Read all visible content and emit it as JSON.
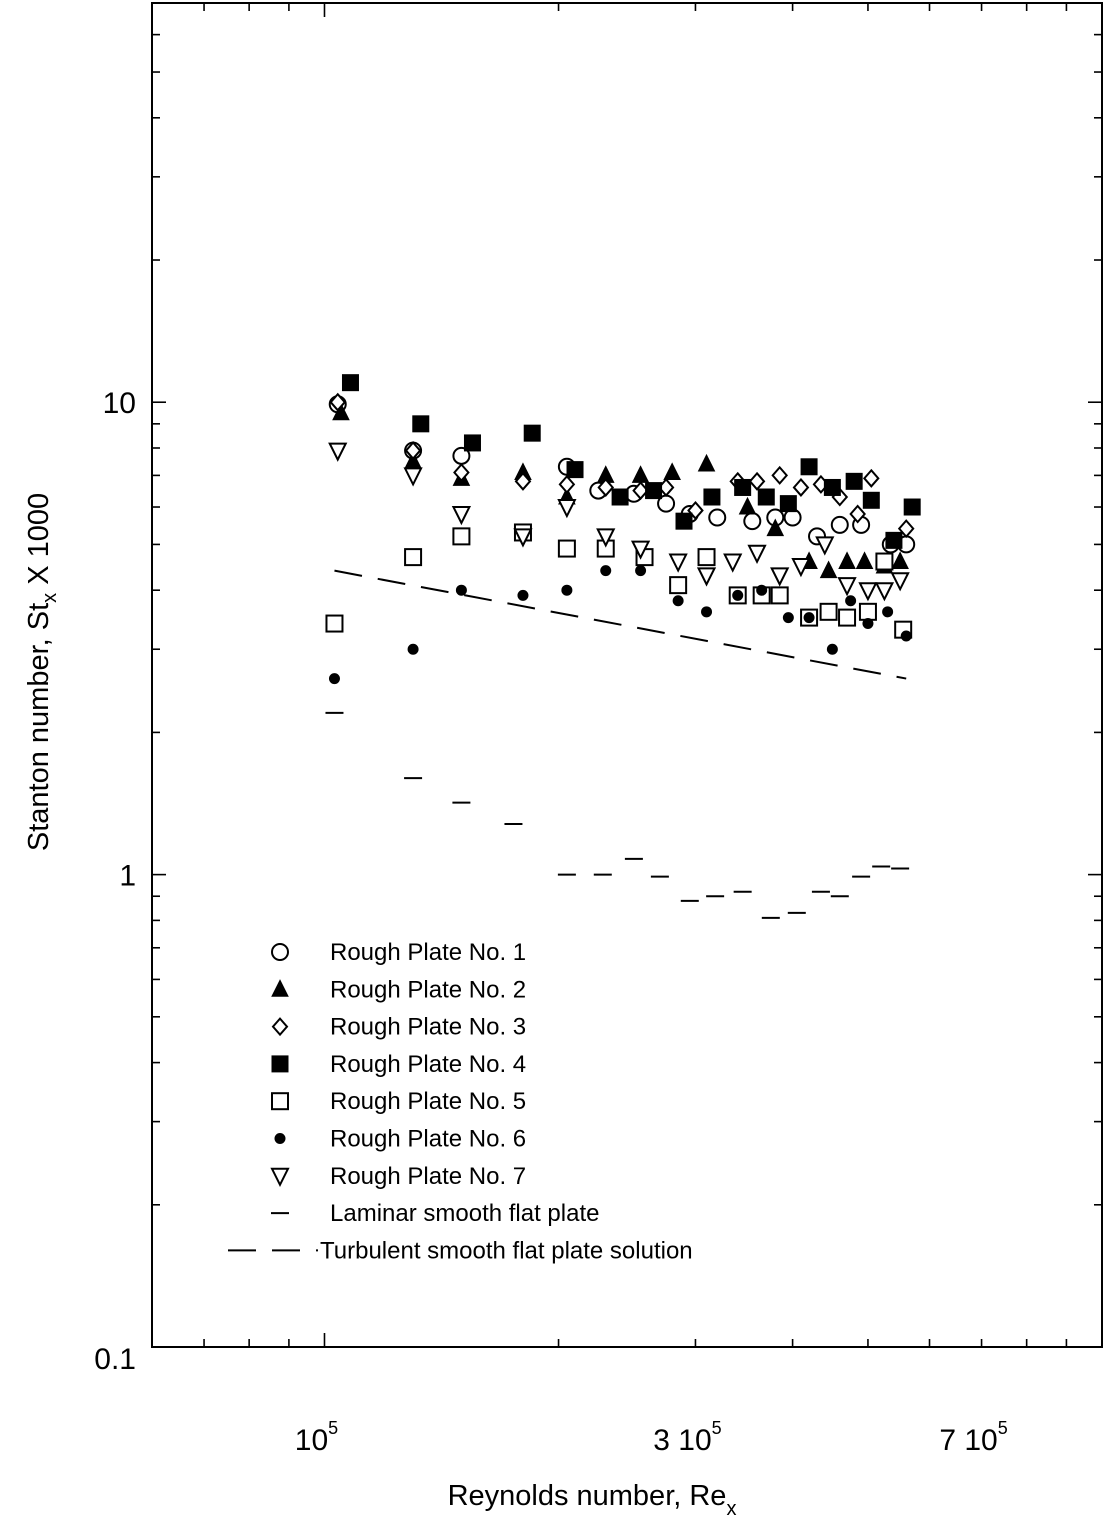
{
  "chart_data": {
    "type": "scatter",
    "xscale": "log",
    "yscale": "log",
    "xlim": [
      60000,
      1000000
    ],
    "ylim": [
      0.1,
      70
    ],
    "x_tick_labels": [
      {
        "value": 100000,
        "mantissa": "10",
        "exponent": "5"
      },
      {
        "value": 300000,
        "mantissa": "3 10",
        "exponent": "5"
      },
      {
        "value": 700000,
        "mantissa": "7 10",
        "exponent": "5"
      }
    ],
    "y_tick_labels": [
      {
        "value": 10,
        "label": "10"
      },
      {
        "value": 1,
        "label": "1"
      },
      {
        "value": 0.1,
        "label": "0.1"
      }
    ],
    "xlabel": {
      "main": "Reynolds number, Re",
      "sub": "x"
    },
    "ylabel": {
      "main": "Stanton number, St",
      "sub": "x",
      "suffix": " X 1000"
    },
    "legend_position": "lower-left",
    "series": [
      {
        "name": "Rough Plate No. 1",
        "marker": "circle-open",
        "x": [
          104000,
          130000,
          150000,
          205000,
          225000,
          250000,
          275000,
          295000,
          320000,
          355000,
          380000,
          400000,
          430000,
          460000,
          490000,
          535000,
          560000
        ],
        "y": [
          9.9,
          7.9,
          7.7,
          7.3,
          6.5,
          6.4,
          6.1,
          5.8,
          5.7,
          5.6,
          5.7,
          5.7,
          5.2,
          5.5,
          5.5,
          5.0,
          5.0
        ]
      },
      {
        "name": "Rough Plate No. 2",
        "marker": "triangle-solid",
        "x": [
          105000,
          130000,
          150000,
          180000,
          205000,
          230000,
          255000,
          280000,
          310000,
          350000,
          380000,
          420000,
          445000,
          470000,
          495000,
          525000,
          550000
        ],
        "y": [
          9.5,
          7.5,
          6.9,
          7.1,
          6.3,
          7.0,
          7.0,
          7.1,
          7.4,
          6.0,
          5.4,
          4.6,
          4.4,
          4.6,
          4.6,
          4.5,
          4.6
        ]
      },
      {
        "name": "Rough Plate No. 3",
        "marker": "diamond-open",
        "x": [
          104000,
          130000,
          150000,
          180000,
          205000,
          230000,
          255000,
          275000,
          300000,
          340000,
          360000,
          385000,
          410000,
          435000,
          460000,
          485000,
          505000,
          560000
        ],
        "y": [
          10.0,
          7.9,
          7.1,
          6.8,
          6.7,
          6.6,
          6.5,
          6.6,
          5.9,
          6.8,
          6.8,
          7.0,
          6.6,
          6.7,
          6.3,
          5.8,
          6.9,
          5.4
        ]
      },
      {
        "name": "Rough Plate No. 4",
        "marker": "square-solid",
        "x": [
          108000,
          133000,
          155000,
          185000,
          210000,
          240000,
          265000,
          290000,
          315000,
          345000,
          370000,
          395000,
          420000,
          450000,
          480000,
          505000,
          540000,
          570000
        ],
        "y": [
          11.0,
          9.0,
          8.2,
          8.6,
          7.2,
          6.3,
          6.5,
          5.6,
          6.3,
          6.6,
          6.3,
          6.1,
          7.3,
          6.6,
          6.8,
          6.2,
          5.1,
          6.0
        ]
      },
      {
        "name": "Rough Plate No. 5",
        "marker": "square-open",
        "x": [
          103000,
          130000,
          150000,
          180000,
          205000,
          230000,
          258000,
          285000,
          310000,
          340000,
          365000,
          385000,
          420000,
          445000,
          470000,
          500000,
          525000,
          555000
        ],
        "y": [
          3.4,
          4.7,
          5.2,
          5.3,
          4.9,
          4.9,
          4.7,
          4.1,
          4.7,
          3.9,
          3.9,
          3.9,
          3.5,
          3.6,
          3.5,
          3.6,
          4.6,
          3.3
        ]
      },
      {
        "name": "Rough Plate No. 6",
        "marker": "dot-solid",
        "x": [
          103000,
          130000,
          150000,
          180000,
          205000,
          230000,
          255000,
          285000,
          310000,
          340000,
          365000,
          395000,
          420000,
          450000,
          475000,
          500000,
          530000,
          560000
        ],
        "y": [
          2.6,
          3.0,
          4.0,
          3.9,
          4.0,
          4.4,
          4.4,
          3.8,
          3.6,
          3.9,
          4.0,
          3.5,
          3.5,
          3.0,
          3.8,
          3.4,
          3.6,
          3.2
        ]
      },
      {
        "name": "Rough Plate No. 7",
        "marker": "triangle-down-open",
        "x": [
          104000,
          130000,
          150000,
          180000,
          205000,
          230000,
          255000,
          285000,
          310000,
          335000,
          360000,
          385000,
          410000,
          440000,
          470000,
          500000,
          525000,
          550000
        ],
        "y": [
          7.9,
          7.0,
          5.8,
          5.2,
          6.0,
          5.2,
          4.9,
          4.6,
          4.3,
          4.6,
          4.8,
          4.3,
          4.5,
          5.0,
          4.1,
          4.0,
          4.0,
          4.2
        ]
      },
      {
        "name": "Laminar smooth flat plate",
        "marker": "dash",
        "x": [
          103000,
          130000,
          150000,
          175000,
          205000,
          228000,
          250000,
          270000,
          295000,
          318000,
          345000,
          375000,
          405000,
          435000,
          460000,
          490000,
          520000,
          550000
        ],
        "y": [
          2.2,
          1.6,
          1.42,
          1.28,
          1.0,
          1.0,
          1.08,
          0.99,
          0.88,
          0.9,
          0.92,
          0.81,
          0.83,
          0.92,
          0.9,
          0.99,
          1.04,
          1.03
        ]
      },
      {
        "name": "Turbulent smooth flat plate solution",
        "marker": "dashed-line",
        "x": [
          103000,
          560000
        ],
        "y": [
          4.4,
          2.6
        ]
      }
    ]
  }
}
